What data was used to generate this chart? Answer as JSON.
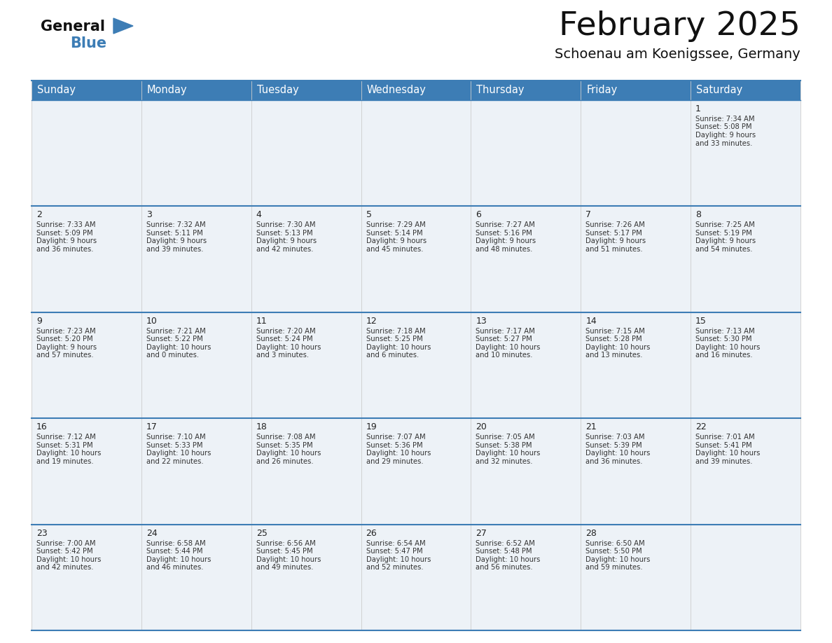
{
  "title": "February 2025",
  "subtitle": "Schoenau am Koenigssee, Germany",
  "header_color": "#3d7db5",
  "header_text_color": "#ffffff",
  "cell_bg_color": "#edf2f7",
  "border_color": "#3d7db5",
  "grid_color": "#cccccc",
  "text_color": "#333333",
  "days_of_week": [
    "Sunday",
    "Monday",
    "Tuesday",
    "Wednesday",
    "Thursday",
    "Friday",
    "Saturday"
  ],
  "day_name_fontsize": 10.5,
  "date_fontsize": 9,
  "info_fontsize": 7.2,
  "title_fontsize": 34,
  "subtitle_fontsize": 14,
  "calendar_data": [
    [
      {
        "day": null,
        "sunrise": null,
        "sunset": null,
        "daylight_h": null,
        "daylight_m": null
      },
      {
        "day": null,
        "sunrise": null,
        "sunset": null,
        "daylight_h": null,
        "daylight_m": null
      },
      {
        "day": null,
        "sunrise": null,
        "sunset": null,
        "daylight_h": null,
        "daylight_m": null
      },
      {
        "day": null,
        "sunrise": null,
        "sunset": null,
        "daylight_h": null,
        "daylight_m": null
      },
      {
        "day": null,
        "sunrise": null,
        "sunset": null,
        "daylight_h": null,
        "daylight_m": null
      },
      {
        "day": null,
        "sunrise": null,
        "sunset": null,
        "daylight_h": null,
        "daylight_m": null
      },
      {
        "day": 1,
        "sunrise": "7:34 AM",
        "sunset": "5:08 PM",
        "daylight_h": "9 hours",
        "daylight_m": "and 33 minutes."
      }
    ],
    [
      {
        "day": 2,
        "sunrise": "7:33 AM",
        "sunset": "5:09 PM",
        "daylight_h": "9 hours",
        "daylight_m": "and 36 minutes."
      },
      {
        "day": 3,
        "sunrise": "7:32 AM",
        "sunset": "5:11 PM",
        "daylight_h": "9 hours",
        "daylight_m": "and 39 minutes."
      },
      {
        "day": 4,
        "sunrise": "7:30 AM",
        "sunset": "5:13 PM",
        "daylight_h": "9 hours",
        "daylight_m": "and 42 minutes."
      },
      {
        "day": 5,
        "sunrise": "7:29 AM",
        "sunset": "5:14 PM",
        "daylight_h": "9 hours",
        "daylight_m": "and 45 minutes."
      },
      {
        "day": 6,
        "sunrise": "7:27 AM",
        "sunset": "5:16 PM",
        "daylight_h": "9 hours",
        "daylight_m": "and 48 minutes."
      },
      {
        "day": 7,
        "sunrise": "7:26 AM",
        "sunset": "5:17 PM",
        "daylight_h": "9 hours",
        "daylight_m": "and 51 minutes."
      },
      {
        "day": 8,
        "sunrise": "7:25 AM",
        "sunset": "5:19 PM",
        "daylight_h": "9 hours",
        "daylight_m": "and 54 minutes."
      }
    ],
    [
      {
        "day": 9,
        "sunrise": "7:23 AM",
        "sunset": "5:20 PM",
        "daylight_h": "9 hours",
        "daylight_m": "and 57 minutes."
      },
      {
        "day": 10,
        "sunrise": "7:21 AM",
        "sunset": "5:22 PM",
        "daylight_h": "10 hours",
        "daylight_m": "and 0 minutes."
      },
      {
        "day": 11,
        "sunrise": "7:20 AM",
        "sunset": "5:24 PM",
        "daylight_h": "10 hours",
        "daylight_m": "and 3 minutes."
      },
      {
        "day": 12,
        "sunrise": "7:18 AM",
        "sunset": "5:25 PM",
        "daylight_h": "10 hours",
        "daylight_m": "and 6 minutes."
      },
      {
        "day": 13,
        "sunrise": "7:17 AM",
        "sunset": "5:27 PM",
        "daylight_h": "10 hours",
        "daylight_m": "and 10 minutes."
      },
      {
        "day": 14,
        "sunrise": "7:15 AM",
        "sunset": "5:28 PM",
        "daylight_h": "10 hours",
        "daylight_m": "and 13 minutes."
      },
      {
        "day": 15,
        "sunrise": "7:13 AM",
        "sunset": "5:30 PM",
        "daylight_h": "10 hours",
        "daylight_m": "and 16 minutes."
      }
    ],
    [
      {
        "day": 16,
        "sunrise": "7:12 AM",
        "sunset": "5:31 PM",
        "daylight_h": "10 hours",
        "daylight_m": "and 19 minutes."
      },
      {
        "day": 17,
        "sunrise": "7:10 AM",
        "sunset": "5:33 PM",
        "daylight_h": "10 hours",
        "daylight_m": "and 22 minutes."
      },
      {
        "day": 18,
        "sunrise": "7:08 AM",
        "sunset": "5:35 PM",
        "daylight_h": "10 hours",
        "daylight_m": "and 26 minutes."
      },
      {
        "day": 19,
        "sunrise": "7:07 AM",
        "sunset": "5:36 PM",
        "daylight_h": "10 hours",
        "daylight_m": "and 29 minutes."
      },
      {
        "day": 20,
        "sunrise": "7:05 AM",
        "sunset": "5:38 PM",
        "daylight_h": "10 hours",
        "daylight_m": "and 32 minutes."
      },
      {
        "day": 21,
        "sunrise": "7:03 AM",
        "sunset": "5:39 PM",
        "daylight_h": "10 hours",
        "daylight_m": "and 36 minutes."
      },
      {
        "day": 22,
        "sunrise": "7:01 AM",
        "sunset": "5:41 PM",
        "daylight_h": "10 hours",
        "daylight_m": "and 39 minutes."
      }
    ],
    [
      {
        "day": 23,
        "sunrise": "7:00 AM",
        "sunset": "5:42 PM",
        "daylight_h": "10 hours",
        "daylight_m": "and 42 minutes."
      },
      {
        "day": 24,
        "sunrise": "6:58 AM",
        "sunset": "5:44 PM",
        "daylight_h": "10 hours",
        "daylight_m": "and 46 minutes."
      },
      {
        "day": 25,
        "sunrise": "6:56 AM",
        "sunset": "5:45 PM",
        "daylight_h": "10 hours",
        "daylight_m": "and 49 minutes."
      },
      {
        "day": 26,
        "sunrise": "6:54 AM",
        "sunset": "5:47 PM",
        "daylight_h": "10 hours",
        "daylight_m": "and 52 minutes."
      },
      {
        "day": 27,
        "sunrise": "6:52 AM",
        "sunset": "5:48 PM",
        "daylight_h": "10 hours",
        "daylight_m": "and 56 minutes."
      },
      {
        "day": 28,
        "sunrise": "6:50 AM",
        "sunset": "5:50 PM",
        "daylight_h": "10 hours",
        "daylight_m": "and 59 minutes."
      },
      {
        "day": null,
        "sunrise": null,
        "sunset": null,
        "daylight_h": null,
        "daylight_m": null
      }
    ]
  ]
}
